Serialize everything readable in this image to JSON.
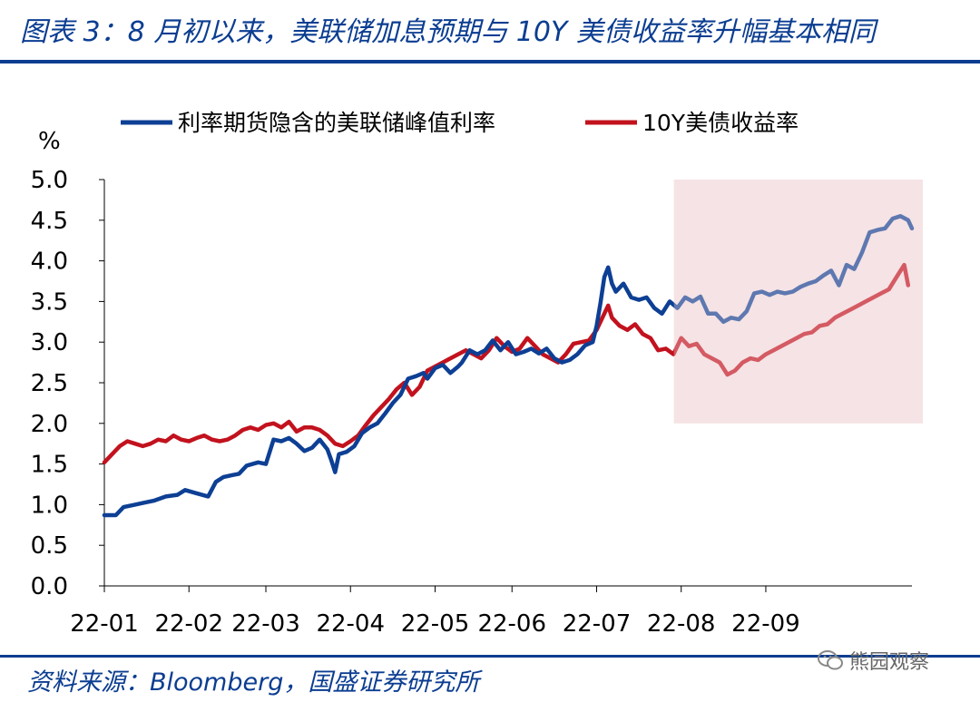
{
  "header": {
    "title": "图表 3：8 月初以来，美联储加息预期与 10Y 美债收益率升幅基本相同"
  },
  "footer": {
    "source": "资料来源：Bloomberg，国盛证券研究所",
    "watermark": "熊园观察"
  },
  "colors": {
    "series1": "#0d3f94",
    "series2": "#c2121e",
    "highlight": "#f5e3e5",
    "frame": "#0b3d91"
  },
  "chart_data": {
    "type": "line",
    "ylabel": "%",
    "ylim": [
      0,
      5
    ],
    "yticks": [
      "0.0",
      "0.5",
      "1.0",
      "1.5",
      "2.0",
      "2.5",
      "3.0",
      "3.5",
      "4.0",
      "4.5",
      "5.0"
    ],
    "xlabels": [
      "22-01",
      "22-02",
      "22-03",
      "22-04",
      "22-05",
      "22-06",
      "22-07",
      "22-08",
      "22-09"
    ],
    "highlight_period": {
      "start": "22-08",
      "end": "22-09",
      "ymin": 2.0,
      "ymax": 5.0
    },
    "series": [
      {
        "name": "利率期货隐含的美联储峰值利率",
        "points": [
          [
            0,
            0.87
          ],
          [
            3,
            0.87
          ],
          [
            5,
            0.97
          ],
          [
            8,
            1.0
          ],
          [
            10,
            1.02
          ],
          [
            13,
            1.05
          ],
          [
            16,
            1.1
          ],
          [
            19,
            1.12
          ],
          [
            21,
            1.18
          ],
          [
            24,
            1.14
          ],
          [
            27,
            1.1
          ],
          [
            29,
            1.28
          ],
          [
            31,
            1.34
          ],
          [
            33,
            1.36
          ],
          [
            35,
            1.38
          ],
          [
            37,
            1.48
          ],
          [
            40,
            1.52
          ],
          [
            42,
            1.5
          ],
          [
            44,
            1.8
          ],
          [
            46,
            1.78
          ],
          [
            48,
            1.82
          ],
          [
            50,
            1.75
          ],
          [
            52,
            1.66
          ],
          [
            54,
            1.7
          ],
          [
            56,
            1.8
          ],
          [
            58,
            1.68
          ],
          [
            59,
            1.55
          ],
          [
            60,
            1.4
          ],
          [
            61,
            1.62
          ],
          [
            63,
            1.65
          ],
          [
            65,
            1.72
          ],
          [
            67,
            1.88
          ],
          [
            69,
            1.95
          ],
          [
            71,
            2.0
          ],
          [
            73,
            2.12
          ],
          [
            75,
            2.25
          ],
          [
            77,
            2.35
          ],
          [
            79,
            2.55
          ],
          [
            81,
            2.58
          ],
          [
            83,
            2.62
          ],
          [
            84,
            2.55
          ],
          [
            86,
            2.68
          ],
          [
            88,
            2.72
          ],
          [
            90,
            2.62
          ],
          [
            92,
            2.7
          ],
          [
            93,
            2.75
          ],
          [
            95,
            2.9
          ],
          [
            97,
            2.85
          ],
          [
            99,
            2.9
          ],
          [
            101,
            3.02
          ],
          [
            103,
            2.9
          ],
          [
            105,
            3.0
          ],
          [
            107,
            2.85
          ],
          [
            109,
            2.88
          ],
          [
            111,
            2.92
          ],
          [
            113,
            2.86
          ],
          [
            115,
            2.92
          ],
          [
            117,
            2.8
          ],
          [
            119,
            2.75
          ],
          [
            121,
            2.78
          ],
          [
            123,
            2.85
          ],
          [
            125,
            2.96
          ],
          [
            127,
            3.0
          ],
          [
            128,
            3.2
          ],
          [
            129,
            3.48
          ],
          [
            130,
            3.8
          ],
          [
            131,
            3.92
          ],
          [
            132,
            3.72
          ],
          [
            133,
            3.62
          ],
          [
            135,
            3.72
          ],
          [
            137,
            3.55
          ],
          [
            139,
            3.52
          ],
          [
            141,
            3.55
          ],
          [
            143,
            3.42
          ],
          [
            145,
            3.35
          ],
          [
            147,
            3.5
          ],
          [
            149,
            3.42
          ],
          [
            151,
            3.55
          ],
          [
            153,
            3.5
          ],
          [
            155,
            3.56
          ],
          [
            157,
            3.35
          ],
          [
            159,
            3.35
          ],
          [
            161,
            3.25
          ],
          [
            163,
            3.3
          ],
          [
            165,
            3.28
          ],
          [
            167,
            3.38
          ],
          [
            169,
            3.6
          ],
          [
            171,
            3.62
          ],
          [
            173,
            3.58
          ],
          [
            175,
            3.62
          ],
          [
            177,
            3.6
          ],
          [
            179,
            3.62
          ],
          [
            181,
            3.68
          ],
          [
            183,
            3.72
          ],
          [
            185,
            3.75
          ],
          [
            187,
            3.82
          ],
          [
            189,
            3.88
          ],
          [
            191,
            3.7
          ],
          [
            193,
            3.95
          ],
          [
            195,
            3.9
          ],
          [
            197,
            4.1
          ],
          [
            199,
            4.35
          ],
          [
            201,
            4.38
          ],
          [
            203,
            4.4
          ],
          [
            205,
            4.52
          ],
          [
            207,
            4.55
          ],
          [
            209,
            4.5
          ],
          [
            210,
            4.4
          ]
        ]
      },
      {
        "name": "10Y美债收益率",
        "points": [
          [
            0,
            1.52
          ],
          [
            2,
            1.62
          ],
          [
            4,
            1.72
          ],
          [
            6,
            1.78
          ],
          [
            8,
            1.75
          ],
          [
            10,
            1.72
          ],
          [
            12,
            1.75
          ],
          [
            14,
            1.8
          ],
          [
            16,
            1.78
          ],
          [
            18,
            1.85
          ],
          [
            20,
            1.8
          ],
          [
            22,
            1.78
          ],
          [
            24,
            1.82
          ],
          [
            26,
            1.85
          ],
          [
            28,
            1.8
          ],
          [
            30,
            1.78
          ],
          [
            32,
            1.8
          ],
          [
            34,
            1.85
          ],
          [
            36,
            1.92
          ],
          [
            38,
            1.95
          ],
          [
            40,
            1.92
          ],
          [
            42,
            1.98
          ],
          [
            44,
            2.0
          ],
          [
            46,
            1.95
          ],
          [
            48,
            2.02
          ],
          [
            50,
            1.9
          ],
          [
            52,
            1.95
          ],
          [
            54,
            1.95
          ],
          [
            56,
            1.92
          ],
          [
            58,
            1.85
          ],
          [
            60,
            1.75
          ],
          [
            62,
            1.72
          ],
          [
            64,
            1.78
          ],
          [
            66,
            1.85
          ],
          [
            68,
            1.98
          ],
          [
            70,
            2.1
          ],
          [
            72,
            2.2
          ],
          [
            74,
            2.3
          ],
          [
            76,
            2.42
          ],
          [
            78,
            2.5
          ],
          [
            80,
            2.35
          ],
          [
            82,
            2.45
          ],
          [
            84,
            2.65
          ],
          [
            86,
            2.7
          ],
          [
            88,
            2.75
          ],
          [
            90,
            2.8
          ],
          [
            92,
            2.85
          ],
          [
            94,
            2.9
          ],
          [
            96,
            2.85
          ],
          [
            98,
            2.8
          ],
          [
            100,
            2.9
          ],
          [
            102,
            3.05
          ],
          [
            104,
            2.95
          ],
          [
            106,
            2.88
          ],
          [
            108,
            2.92
          ],
          [
            110,
            3.05
          ],
          [
            112,
            2.95
          ],
          [
            114,
            2.85
          ],
          [
            116,
            2.8
          ],
          [
            118,
            2.75
          ],
          [
            120,
            2.85
          ],
          [
            122,
            2.98
          ],
          [
            124,
            3.0
          ],
          [
            126,
            3.02
          ],
          [
            128,
            3.15
          ],
          [
            130,
            3.35
          ],
          [
            131,
            3.45
          ],
          [
            132,
            3.3
          ],
          [
            134,
            3.2
          ],
          [
            136,
            3.15
          ],
          [
            138,
            3.22
          ],
          [
            140,
            3.1
          ],
          [
            142,
            3.05
          ],
          [
            144,
            2.9
          ],
          [
            146,
            2.92
          ],
          [
            148,
            2.85
          ],
          [
            150,
            3.05
          ],
          [
            152,
            2.95
          ],
          [
            154,
            2.98
          ],
          [
            156,
            2.85
          ],
          [
            158,
            2.8
          ],
          [
            160,
            2.75
          ],
          [
            162,
            2.6
          ],
          [
            164,
            2.65
          ],
          [
            166,
            2.75
          ],
          [
            168,
            2.8
          ],
          [
            170,
            2.78
          ],
          [
            172,
            2.85
          ],
          [
            174,
            2.9
          ],
          [
            176,
            2.95
          ],
          [
            178,
            3.0
          ],
          [
            180,
            3.05
          ],
          [
            182,
            3.1
          ],
          [
            184,
            3.12
          ],
          [
            186,
            3.2
          ],
          [
            188,
            3.22
          ],
          [
            190,
            3.3
          ],
          [
            192,
            3.35
          ],
          [
            194,
            3.4
          ],
          [
            196,
            3.45
          ],
          [
            198,
            3.5
          ],
          [
            200,
            3.55
          ],
          [
            202,
            3.6
          ],
          [
            204,
            3.65
          ],
          [
            206,
            3.8
          ],
          [
            208,
            3.95
          ],
          [
            209,
            3.7
          ]
        ]
      }
    ]
  }
}
